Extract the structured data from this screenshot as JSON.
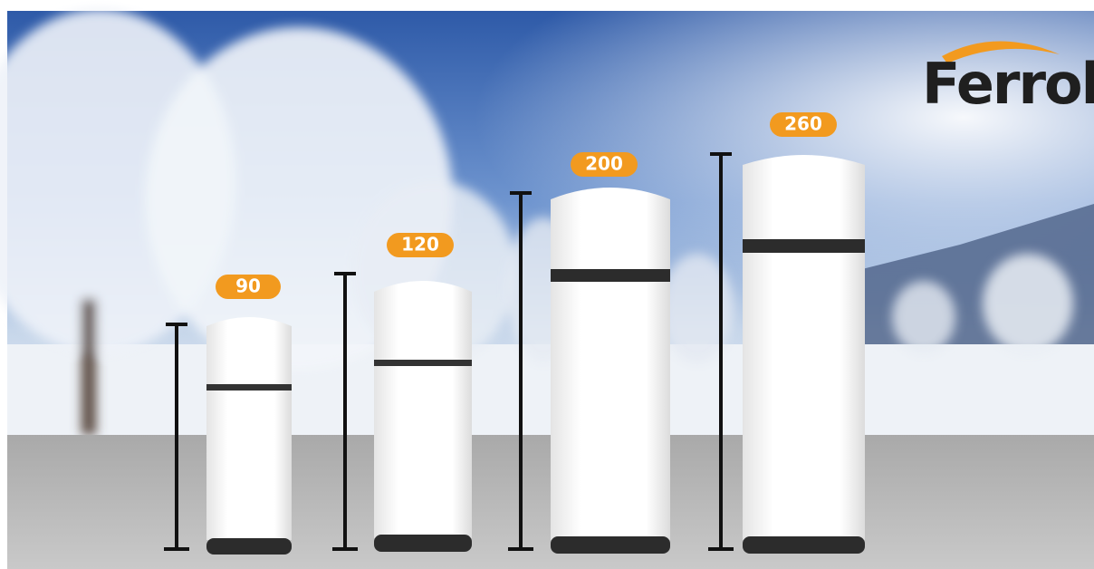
{
  "brand": "Ferroli",
  "products": [
    {
      "label": "90"
    },
    {
      "label": "120"
    },
    {
      "label": "200"
    },
    {
      "label": "260"
    }
  ]
}
